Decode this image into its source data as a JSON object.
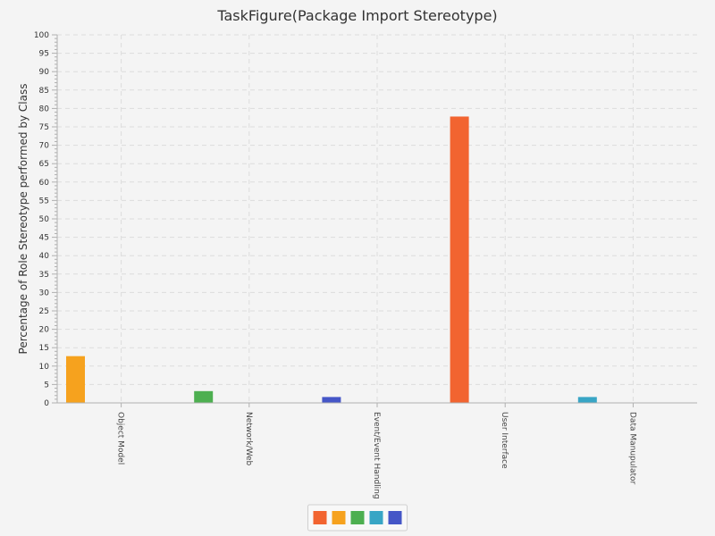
{
  "chart_data": {
    "type": "bar",
    "title": "TaskFigure(Package Import Stereotype)",
    "ylabel": "Percentage of Role Stereotype performed by Class",
    "xlabel": "",
    "ylim": [
      0,
      100
    ],
    "ytick_step": 5,
    "grid": true,
    "legend_position": "bottom-center",
    "categories": [
      "Object Model",
      "Network/Web",
      "Event/Event Handling",
      "User Interface",
      "Data Manupulator"
    ],
    "series": [
      {
        "color": "#f26430",
        "values": [
          0,
          0,
          0,
          77.8,
          0
        ]
      },
      {
        "color": "#f6a21e",
        "values": [
          12.7,
          0,
          0,
          0,
          0
        ]
      },
      {
        "color": "#4daf50",
        "values": [
          0,
          3.2,
          0,
          0,
          0
        ]
      },
      {
        "color": "#38a5c5",
        "values": [
          0,
          0,
          0,
          0,
          1.6
        ]
      },
      {
        "color": "#4556c7",
        "values": [
          0,
          0,
          1.6,
          0,
          0
        ]
      }
    ]
  }
}
